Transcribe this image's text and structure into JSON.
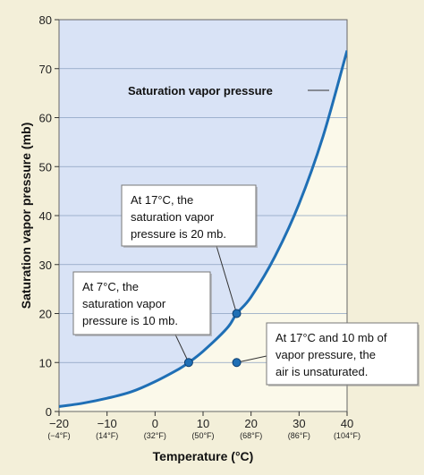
{
  "chart_data": {
    "type": "line",
    "xlabel": "Temperature (°C)",
    "ylabel": "Saturation vapor pressure (mb)",
    "xlim": [
      -20,
      40
    ],
    "ylim": [
      0,
      80
    ],
    "x_ticks": [
      -20,
      -10,
      0,
      10,
      20,
      30,
      40
    ],
    "x_ticks_f": [
      "(−4°F)",
      "(14°F)",
      "(32°F)",
      "(50°F)",
      "(68°F)",
      "(86°F)",
      "(104°F)"
    ],
    "x_tick_labels": [
      "−20",
      "−10",
      "0",
      "10",
      "20",
      "30",
      "40"
    ],
    "y_ticks": [
      0,
      10,
      20,
      30,
      40,
      50,
      60,
      70,
      80
    ],
    "grid": true,
    "series": [
      {
        "name": "Saturation vapor pressure",
        "x": [
          -20,
          -15,
          -10,
          -5,
          0,
          5,
          7,
          10,
          15,
          17,
          20,
          25,
          30,
          35,
          40
        ],
        "y": [
          1.0,
          1.7,
          2.7,
          4.0,
          6.1,
          8.7,
          10.0,
          12.3,
          17.0,
          20.0,
          23.4,
          31.7,
          42.4,
          56.2,
          73.7
        ]
      }
    ],
    "points": [
      {
        "x": 7,
        "y": 10
      },
      {
        "x": 17,
        "y": 20
      },
      {
        "x": 17,
        "y": 10
      }
    ],
    "annotations": [
      {
        "lines": [
          "At 17°C, the",
          "saturation vapor",
          "pressure is 20 mb."
        ]
      },
      {
        "lines": [
          "At 7°C, the",
          "saturation vapor",
          "pressure is 10 mb."
        ]
      },
      {
        "lines": [
          "At 17°C and 10 mb of",
          "vapor pressure, the",
          "air is unsaturated."
        ]
      }
    ]
  },
  "colors": {
    "curve": "#1f6fb5",
    "saturated_fill": "#d9e3f6",
    "unsaturated_fill": "#fbf9ea",
    "page_bg": "#f3efd9",
    "grid": "#8aa0c0"
  }
}
